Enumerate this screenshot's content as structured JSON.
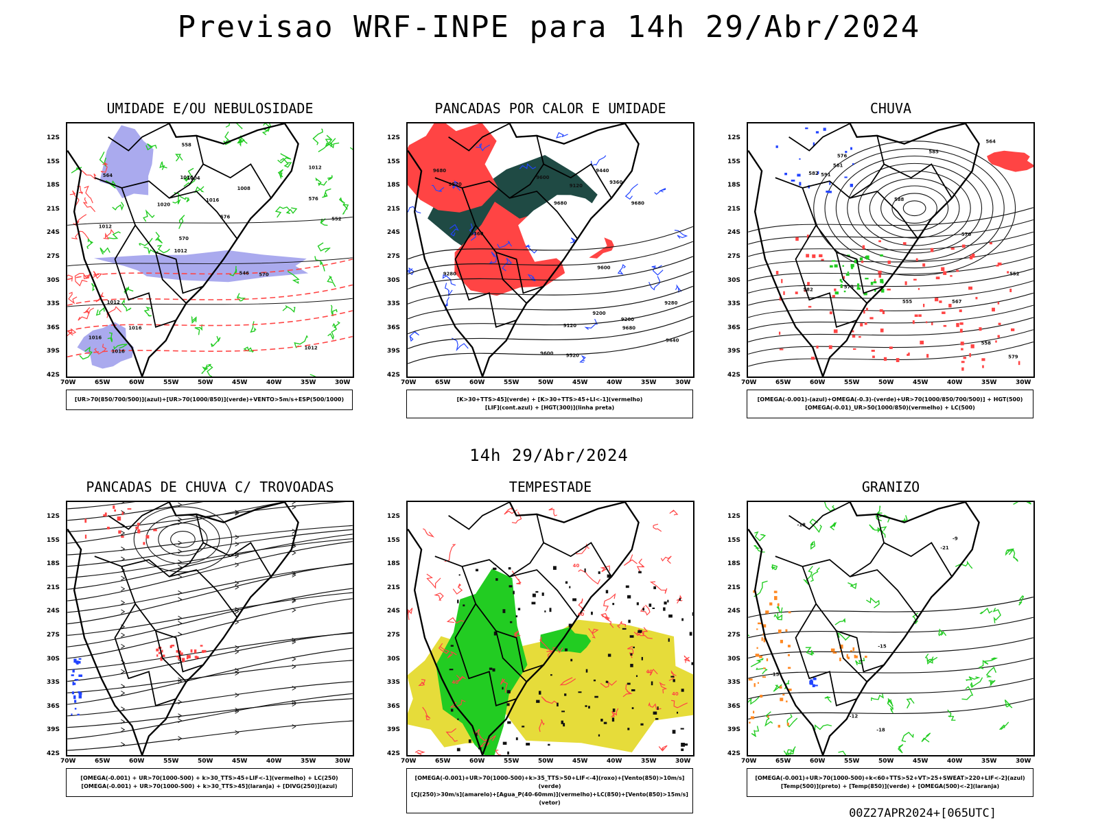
{
  "title": "Previsao WRF-INPE  para 14h 29/Abr/2024",
  "subtitle": "14h 29/Abr/2024",
  "footer": "00Z27APR2024+[065UTC]",
  "lat_ticks": [
    "12S",
    "15S",
    "18S",
    "21S",
    "24S",
    "27S",
    "30S",
    "33S",
    "36S",
    "39S",
    "42S"
  ],
  "lon_ticks": [
    "70W",
    "65W",
    "60W",
    "55W",
    "50W",
    "45W",
    "40W",
    "35W",
    "30W"
  ],
  "colors": {
    "humidity_blue": "#aaaaee",
    "green": "#22cc22",
    "red": "#ff4444",
    "dark_teal": "#1f4a44",
    "yellow": "#e6dc3a",
    "blue": "#2244ff",
    "orange": "#ff8822"
  },
  "panels": [
    {
      "id": "umidade",
      "title": "UMIDADE E/OU NEBULOSIDADE",
      "legend": [
        "[UR>70(850/700/500)](azul)+[UR>70(1000/850)](verde)+VENTO>5m/s+ESP(500/1000)"
      ],
      "labels": [
        "1012",
        "1012",
        "1012",
        "1012",
        "1008",
        "1016",
        "1016",
        "1016",
        "1012",
        "1020",
        "1016",
        "1016",
        "1004",
        "576",
        "570",
        "564",
        "558",
        "552",
        "546",
        "576",
        "570"
      ]
    },
    {
      "id": "pancadas-calor",
      "title": "PANCADAS POR CALOR E UMIDADE",
      "legend": [
        "[K>30+TTS>45](verde) + [K>30+TTS>45+LI<-1](vermelho)",
        "[LIF](cont.azul) + [HGT(300)](linha preta)"
      ],
      "labels": [
        "9680",
        "9680",
        "9680",
        "9680",
        "9600",
        "9600",
        "9520",
        "9440",
        "9360",
        "9280",
        "9200",
        "9120",
        "9600",
        "9520",
        "9440",
        "9360",
        "9280",
        "9200",
        "9120"
      ]
    },
    {
      "id": "chuva",
      "title": "CHUVA",
      "legend": [
        "[OMEGA(-0.001)-(azul)+OMEGA(-0.3)-(verde)+UR>70(1000/850/700/500)] + HGT(500)",
        "[OMEGA(-0.01)_UR>50(1000/850)(vermelho) + LC(500)"
      ],
      "labels": [
        "582",
        "588",
        "582",
        "576",
        "573",
        "570",
        "567",
        "564",
        "561",
        "558",
        "555",
        "552",
        "579",
        "585",
        "591"
      ]
    },
    {
      "id": "trovoadas",
      "title": "PANCADAS DE CHUVA C/ TROVOADAS",
      "legend": [
        "[OMEGA(-0.001) + UR>70(1000-500) + k>30_TTS>45+LIF<-1](vermelho) + LC(250)",
        "[OMEGA(-0.001) + UR>70(1000-500) + k>30_TTS>45](laranja) + [DIVG(250)](azul)"
      ],
      "labels": []
    },
    {
      "id": "tempestade",
      "title": "TEMPESTADE",
      "legend": [
        "[OMEGA(-0.001)+UR>70(1000-500)+k>35_TTS>50+LIF<-4](roxo)+[Vento(850)>10m/s](verde)",
        "[CJ(250)>30m/s](amarelo)+[Agua_P(40-60mm)](vermelho)+LC(850)+[Vento(850)>15m/s](vetor)"
      ],
      "labels": [
        "40",
        "40",
        "40",
        "40",
        "40"
      ]
    },
    {
      "id": "granizo",
      "title": "GRANIZO",
      "legend": [
        "[OMEGA(-0.001)+UR>70(1000-500)+k<60+TTS>52+VT>25+SWEAT>220+LIF<-2](azul)",
        "[Temp(500)](preto) + [Temp(850)](verde) + [OMEGA(500)<-2](laranja)"
      ],
      "labels": [
        "-9",
        "-12",
        "-15",
        "-15",
        "-18",
        "-18",
        "-21"
      ]
    }
  ]
}
